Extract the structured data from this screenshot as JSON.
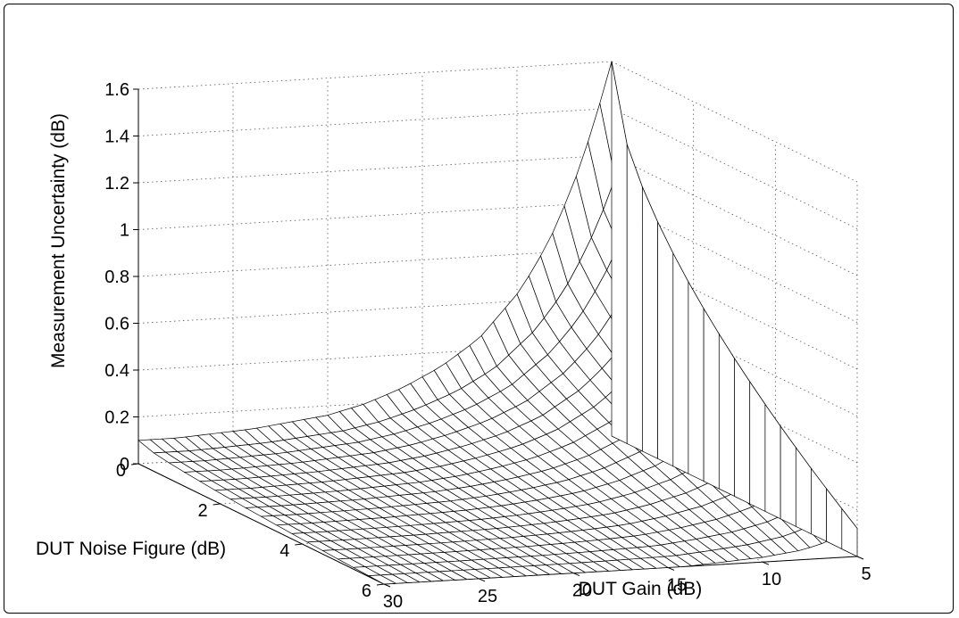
{
  "chart_data": {
    "type": "surface",
    "title": "",
    "zlabel": "Measurement Uncertainty (dB)",
    "xlabel": "DUT Gain (dB)",
    "ylabel": "DUT Noise Figure (dB)",
    "zlim": [
      0,
      1.6
    ],
    "xlim": [
      5,
      30
    ],
    "ylim": [
      0,
      6
    ],
    "z_ticks": [
      "0",
      "0.2",
      "0.4",
      "0.6",
      "0.8",
      "1",
      "1.2",
      "1.4",
      "1.6"
    ],
    "x_ticks": [
      "5",
      "10",
      "15",
      "20",
      "25",
      "30"
    ],
    "y_ticks": [
      "0",
      "2",
      "4",
      "6"
    ],
    "grid": true,
    "x_dir": "reverse",
    "gain_db": [
      5,
      6,
      7,
      8,
      9,
      10,
      12,
      14,
      16,
      18,
      20,
      22,
      24,
      26,
      28,
      30
    ],
    "noise_figure_db": [
      0,
      6
    ],
    "uncertainty_db_nf0": [
      1.6,
      1.32,
      1.09,
      0.9,
      0.75,
      0.63,
      0.45,
      0.34,
      0.26,
      0.2,
      0.16,
      0.14,
      0.12,
      0.11,
      0.1,
      0.1
    ],
    "uncertainty_db_nf6": [
      0.12,
      0.09,
      0.06,
      0.04,
      0.03,
      0.02,
      0.01,
      0.0,
      0.0,
      0.0,
      0.0,
      0.0,
      0.0,
      0.0,
      0.0,
      0.0
    ]
  }
}
